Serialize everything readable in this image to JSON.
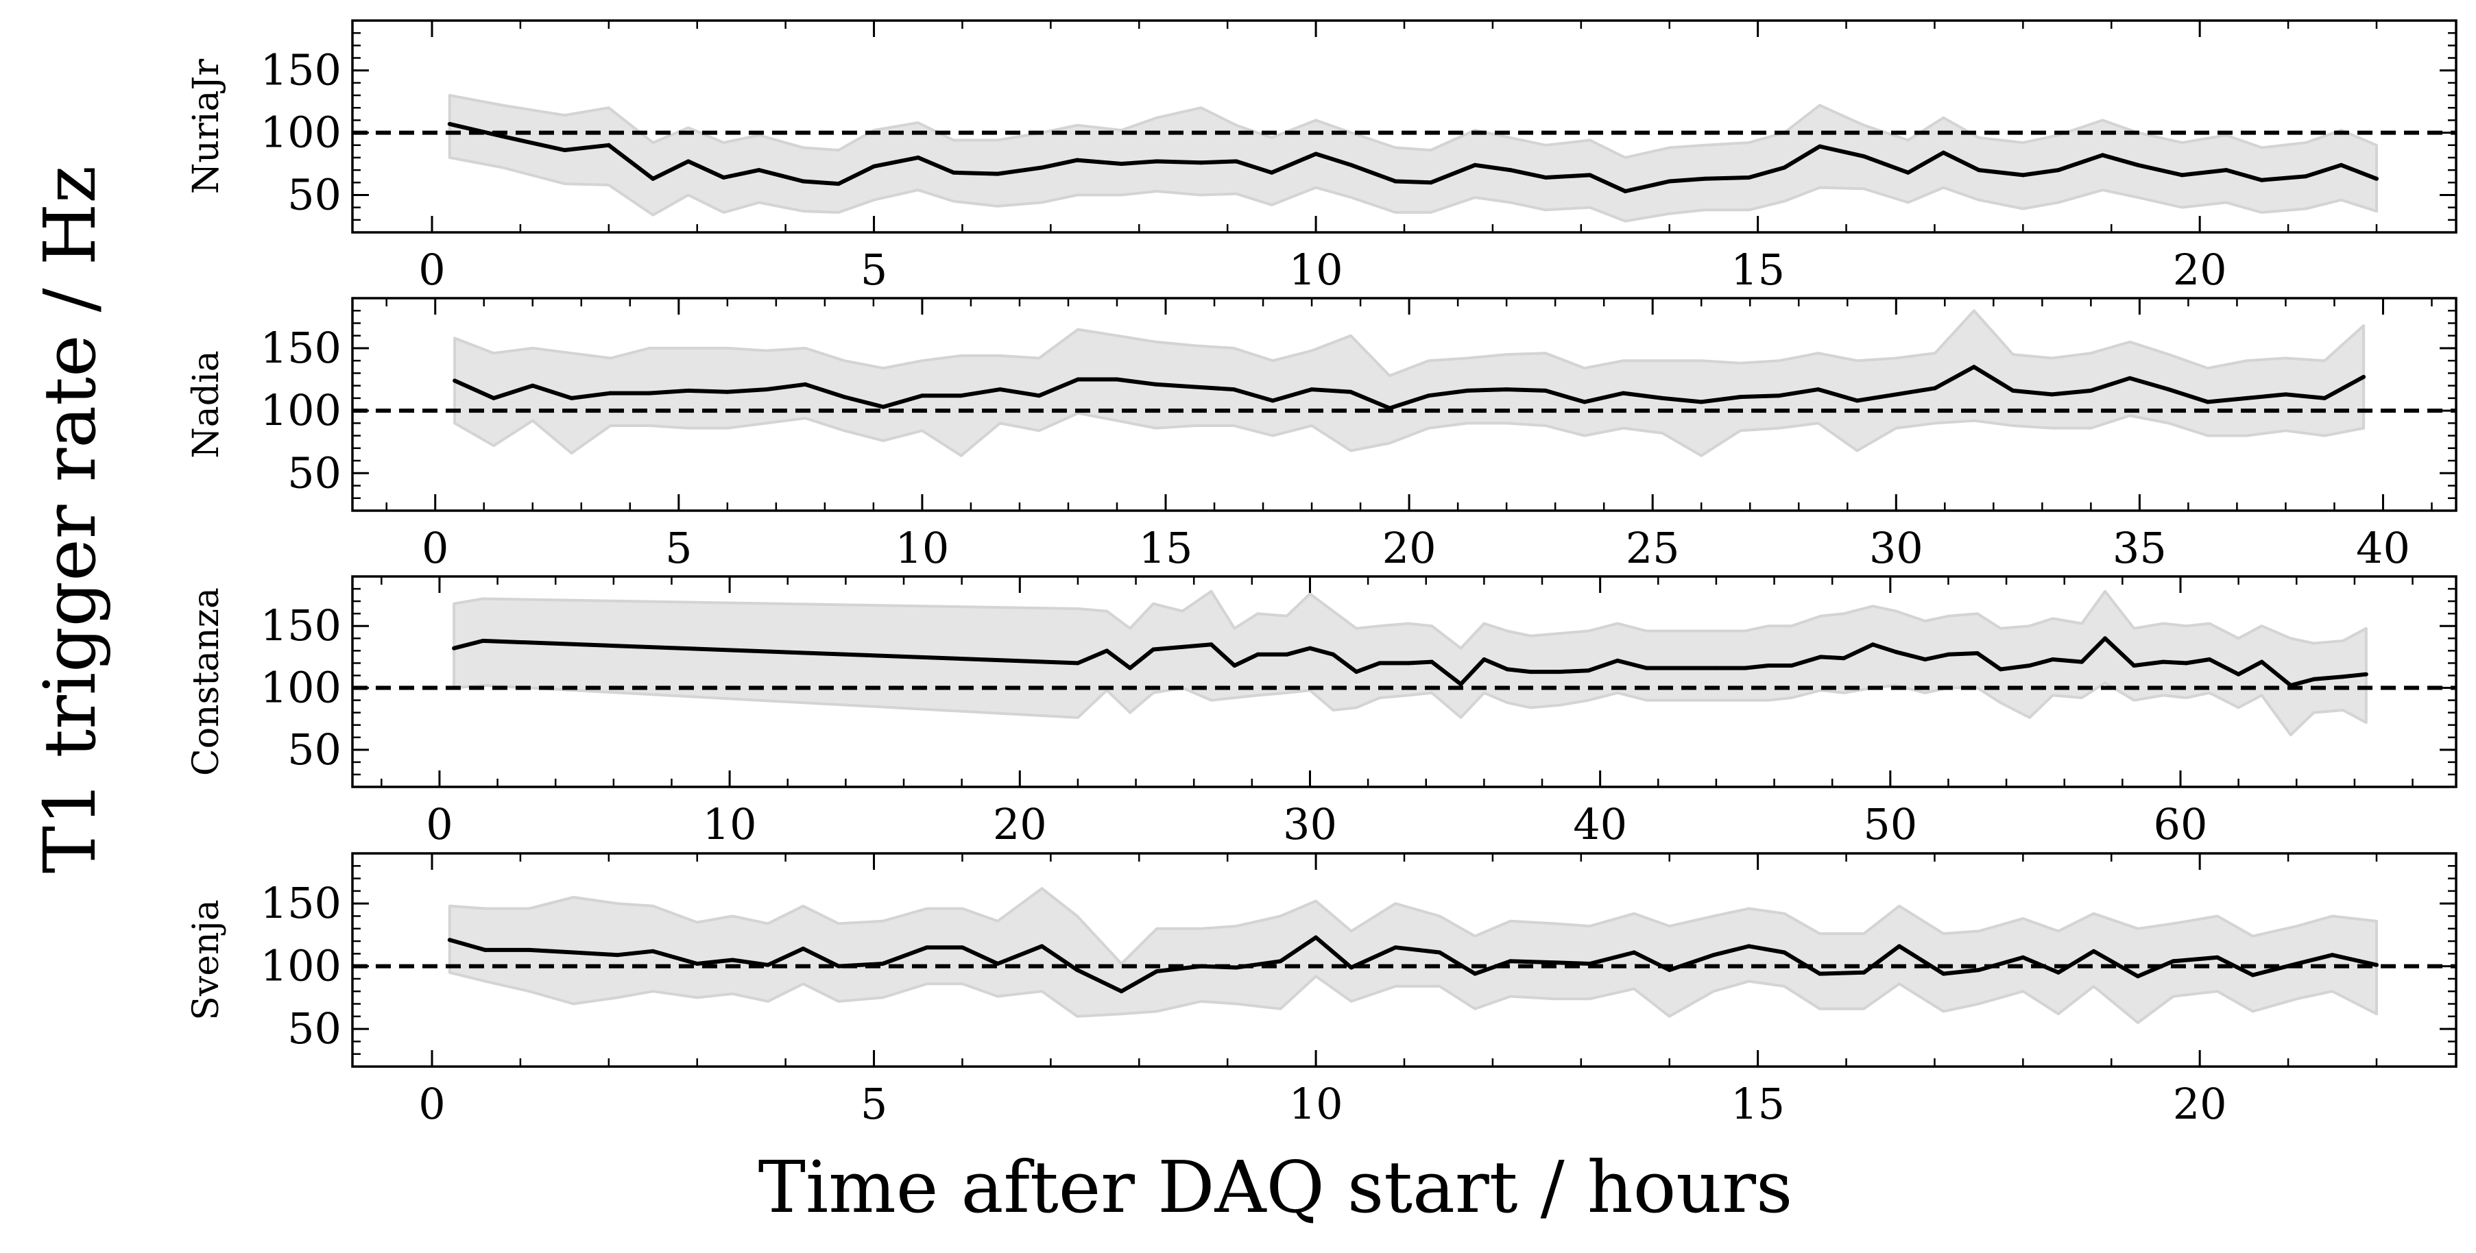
{
  "figure": {
    "ylabel": "T1 trigger rate / Hz",
    "xlabel": "Time after DAQ start / hours"
  },
  "chart_data": [
    {
      "type": "line",
      "station": "NuriaJr",
      "ylabel": "NuriaJr",
      "xlim": [
        -0.9,
        22.9
      ],
      "ylim": [
        20,
        190
      ],
      "xticks": [
        0,
        5,
        10,
        15,
        20
      ],
      "yticks": [
        50,
        100,
        150
      ],
      "reference_line": 100,
      "series": [
        {
          "x": [
            0.2,
            0.8,
            1.5,
            2.0,
            2.5,
            2.9,
            3.3,
            3.7,
            4.2,
            4.6,
            5.0,
            5.5,
            5.9,
            6.4,
            6.9,
            7.3,
            7.8,
            8.2,
            8.7,
            9.1,
            9.5,
            10.0,
            10.4,
            10.9,
            11.3,
            11.8,
            12.2,
            12.6,
            13.1,
            13.5,
            14.0,
            14.4,
            14.9,
            15.3,
            15.7,
            16.2,
            16.7,
            17.1,
            17.5,
            18.0,
            18.4,
            18.9,
            19.3,
            19.8,
            20.3,
            20.7,
            21.2,
            21.6,
            22.0
          ],
          "y": [
            107,
            97,
            86,
            90,
            63,
            77,
            64,
            70,
            61,
            59,
            73,
            80,
            68,
            67,
            72,
            78,
            75,
            77,
            76,
            77,
            68,
            83,
            74,
            61,
            60,
            74,
            70,
            64,
            66,
            53,
            61,
            63,
            64,
            72,
            89,
            81,
            68,
            84,
            70,
            66,
            70,
            82,
            74,
            66,
            70,
            62,
            65,
            74,
            63
          ],
          "lower": [
            80,
            72,
            59,
            58,
            34,
            50,
            36,
            44,
            37,
            36,
            46,
            54,
            45,
            41,
            44,
            50,
            50,
            53,
            50,
            51,
            42,
            56,
            48,
            36,
            36,
            48,
            44,
            38,
            40,
            29,
            35,
            38,
            38,
            45,
            56,
            55,
            44,
            56,
            46,
            39,
            44,
            54,
            48,
            40,
            44,
            36,
            39,
            46,
            37
          ],
          "upper": [
            130,
            122,
            114,
            120,
            92,
            104,
            92,
            98,
            88,
            86,
            102,
            108,
            94,
            94,
            100,
            106,
            102,
            112,
            120,
            106,
            96,
            110,
            100,
            88,
            86,
            102,
            96,
            90,
            94,
            80,
            88,
            90,
            92,
            100,
            122,
            106,
            94,
            112,
            96,
            92,
            98,
            110,
            100,
            92,
            98,
            88,
            92,
            102,
            90
          ]
        }
      ]
    },
    {
      "type": "line",
      "station": "Nadia",
      "ylabel": "Nadia",
      "xlim": [
        -1.7,
        41.5
      ],
      "ylim": [
        20,
        190
      ],
      "xticks": [
        0,
        5,
        10,
        15,
        20,
        25,
        30,
        35,
        40
      ],
      "yticks": [
        50,
        100,
        150
      ],
      "reference_line": 100,
      "series": [
        {
          "x": [
            0.4,
            1.2,
            2.0,
            2.8,
            3.6,
            4.4,
            5.2,
            6.0,
            6.8,
            7.6,
            8.4,
            9.2,
            10.0,
            10.8,
            11.6,
            12.4,
            13.2,
            14.0,
            14.8,
            15.6,
            16.4,
            17.2,
            18.0,
            18.8,
            19.6,
            20.4,
            21.2,
            22.0,
            22.8,
            23.6,
            24.4,
            25.2,
            26.0,
            26.8,
            27.6,
            28.4,
            29.2,
            30.0,
            30.8,
            31.6,
            32.4,
            33.2,
            34.0,
            34.8,
            35.6,
            36.4,
            37.2,
            38.0,
            38.8,
            39.6
          ],
          "y": [
            124,
            110,
            120,
            110,
            114,
            114,
            116,
            115,
            117,
            121,
            111,
            103,
            112,
            112,
            117,
            112,
            125,
            125,
            121,
            119,
            117,
            108,
            117,
            115,
            102,
            112,
            116,
            117,
            116,
            107,
            114,
            110,
            107,
            111,
            112,
            117,
            108,
            113,
            118,
            135,
            116,
            113,
            116,
            126,
            117,
            107,
            110,
            113,
            110,
            127
          ],
          "lower": [
            90,
            72,
            92,
            66,
            88,
            88,
            86,
            86,
            90,
            94,
            84,
            76,
            84,
            64,
            90,
            84,
            98,
            92,
            86,
            88,
            88,
            80,
            88,
            68,
            74,
            86,
            90,
            90,
            88,
            80,
            86,
            82,
            64,
            84,
            86,
            90,
            68,
            86,
            90,
            92,
            88,
            86,
            86,
            96,
            90,
            80,
            80,
            84,
            80,
            86
          ],
          "upper": [
            158,
            146,
            150,
            146,
            142,
            150,
            150,
            150,
            148,
            150,
            140,
            134,
            140,
            144,
            144,
            142,
            165,
            160,
            155,
            152,
            150,
            140,
            148,
            160,
            128,
            140,
            142,
            145,
            146,
            134,
            140,
            140,
            140,
            138,
            140,
            146,
            140,
            142,
            146,
            180,
            145,
            142,
            146,
            155,
            145,
            134,
            140,
            142,
            140,
            168
          ]
        }
      ]
    },
    {
      "type": "line",
      "station": "Constanza",
      "ylabel": "Constanza",
      "xlim": [
        -3,
        69.5
      ],
      "ylim": [
        20,
        190
      ],
      "xticks": [
        0,
        10,
        20,
        30,
        40,
        50,
        60
      ],
      "yticks": [
        50,
        100,
        150
      ],
      "reference_line": 100,
      "series": [
        {
          "x": [
            0.5,
            1.5,
            22.0,
            23.0,
            23.8,
            24.6,
            25.6,
            26.6,
            27.4,
            28.2,
            29.2,
            30.0,
            30.8,
            31.6,
            32.4,
            33.4,
            34.2,
            35.2,
            36.0,
            36.8,
            37.6,
            38.6,
            39.6,
            40.6,
            41.6,
            44.0,
            45.0,
            45.8,
            46.6,
            47.6,
            48.4,
            49.4,
            50.2,
            51.2,
            52.0,
            53.0,
            53.8,
            54.8,
            55.6,
            56.6,
            57.4,
            58.4,
            59.4,
            60.2,
            61.0,
            62.0,
            62.8,
            63.8,
            64.6,
            65.6,
            66.4
          ],
          "y": [
            132,
            138,
            120,
            130,
            116,
            131,
            133,
            135,
            118,
            127,
            127,
            132,
            127,
            113,
            120,
            120,
            121,
            103,
            123,
            115,
            113,
            113,
            114,
            122,
            116,
            116,
            116,
            118,
            118,
            125,
            124,
            135,
            129,
            123,
            127,
            128,
            115,
            118,
            123,
            121,
            140,
            118,
            121,
            120,
            123,
            111,
            121,
            102,
            107,
            109,
            111
          ],
          "lower": [
            100,
            102,
            76,
            98,
            80,
            96,
            100,
            90,
            92,
            94,
            96,
            98,
            82,
            84,
            92,
            94,
            96,
            76,
            96,
            88,
            84,
            86,
            90,
            96,
            90,
            90,
            90,
            90,
            92,
            98,
            96,
            100,
            102,
            96,
            100,
            100,
            88,
            76,
            94,
            92,
            104,
            90,
            94,
            92,
            96,
            84,
            94,
            62,
            80,
            82,
            72
          ],
          "upper": [
            168,
            172,
            164,
            162,
            148,
            168,
            162,
            178,
            148,
            160,
            158,
            176,
            162,
            148,
            150,
            152,
            150,
            132,
            152,
            146,
            142,
            144,
            146,
            152,
            146,
            146,
            146,
            150,
            150,
            158,
            160,
            166,
            162,
            154,
            158,
            160,
            148,
            150,
            156,
            152,
            178,
            148,
            152,
            150,
            152,
            140,
            150,
            140,
            136,
            138,
            148
          ]
        }
      ]
    },
    {
      "type": "line",
      "station": "Svenja",
      "ylabel": "Svenja",
      "xlim": [
        -0.9,
        22.9
      ],
      "ylim": [
        20,
        190
      ],
      "xticks": [
        0,
        5,
        10,
        15,
        20
      ],
      "yticks": [
        50,
        100,
        150
      ],
      "reference_line": 100,
      "series": [
        {
          "x": [
            0.2,
            0.6,
            1.1,
            1.6,
            2.1,
            2.5,
            3.0,
            3.4,
            3.8,
            4.2,
            4.6,
            5.1,
            5.6,
            6.0,
            6.4,
            6.9,
            7.3,
            7.8,
            8.2,
            8.7,
            9.1,
            9.6,
            10.0,
            10.4,
            10.9,
            11.4,
            11.8,
            12.2,
            12.7,
            13.1,
            13.6,
            14.0,
            14.5,
            14.9,
            15.3,
            15.7,
            16.2,
            16.6,
            17.1,
            17.5,
            18.0,
            18.4,
            18.8,
            19.3,
            19.7,
            20.2,
            20.6,
            21.1,
            21.5,
            22.0
          ],
          "y": [
            121,
            113,
            113,
            111,
            109,
            112,
            102,
            105,
            101,
            114,
            100,
            102,
            115,
            115,
            102,
            116,
            97,
            80,
            96,
            100,
            99,
            104,
            123,
            99,
            115,
            111,
            94,
            104,
            103,
            102,
            111,
            97,
            109,
            116,
            111,
            94,
            95,
            116,
            94,
            97,
            107,
            95,
            112,
            92,
            104,
            107,
            93,
            102,
            109,
            101
          ],
          "lower": [
            95,
            88,
            80,
            70,
            75,
            80,
            75,
            78,
            72,
            86,
            72,
            75,
            86,
            86,
            76,
            80,
            60,
            62,
            64,
            72,
            70,
            66,
            92,
            72,
            84,
            84,
            66,
            76,
            74,
            74,
            82,
            60,
            80,
            88,
            84,
            66,
            66,
            86,
            64,
            70,
            80,
            62,
            84,
            55,
            76,
            80,
            64,
            74,
            80,
            62
          ],
          "upper": [
            148,
            146,
            146,
            155,
            150,
            148,
            135,
            140,
            134,
            148,
            134,
            136,
            146,
            146,
            136,
            162,
            140,
            102,
            130,
            130,
            132,
            140,
            152,
            128,
            150,
            140,
            124,
            136,
            134,
            132,
            142,
            132,
            140,
            146,
            142,
            126,
            126,
            148,
            126,
            128,
            138,
            128,
            142,
            130,
            134,
            140,
            124,
            132,
            140,
            136
          ]
        }
      ]
    }
  ]
}
